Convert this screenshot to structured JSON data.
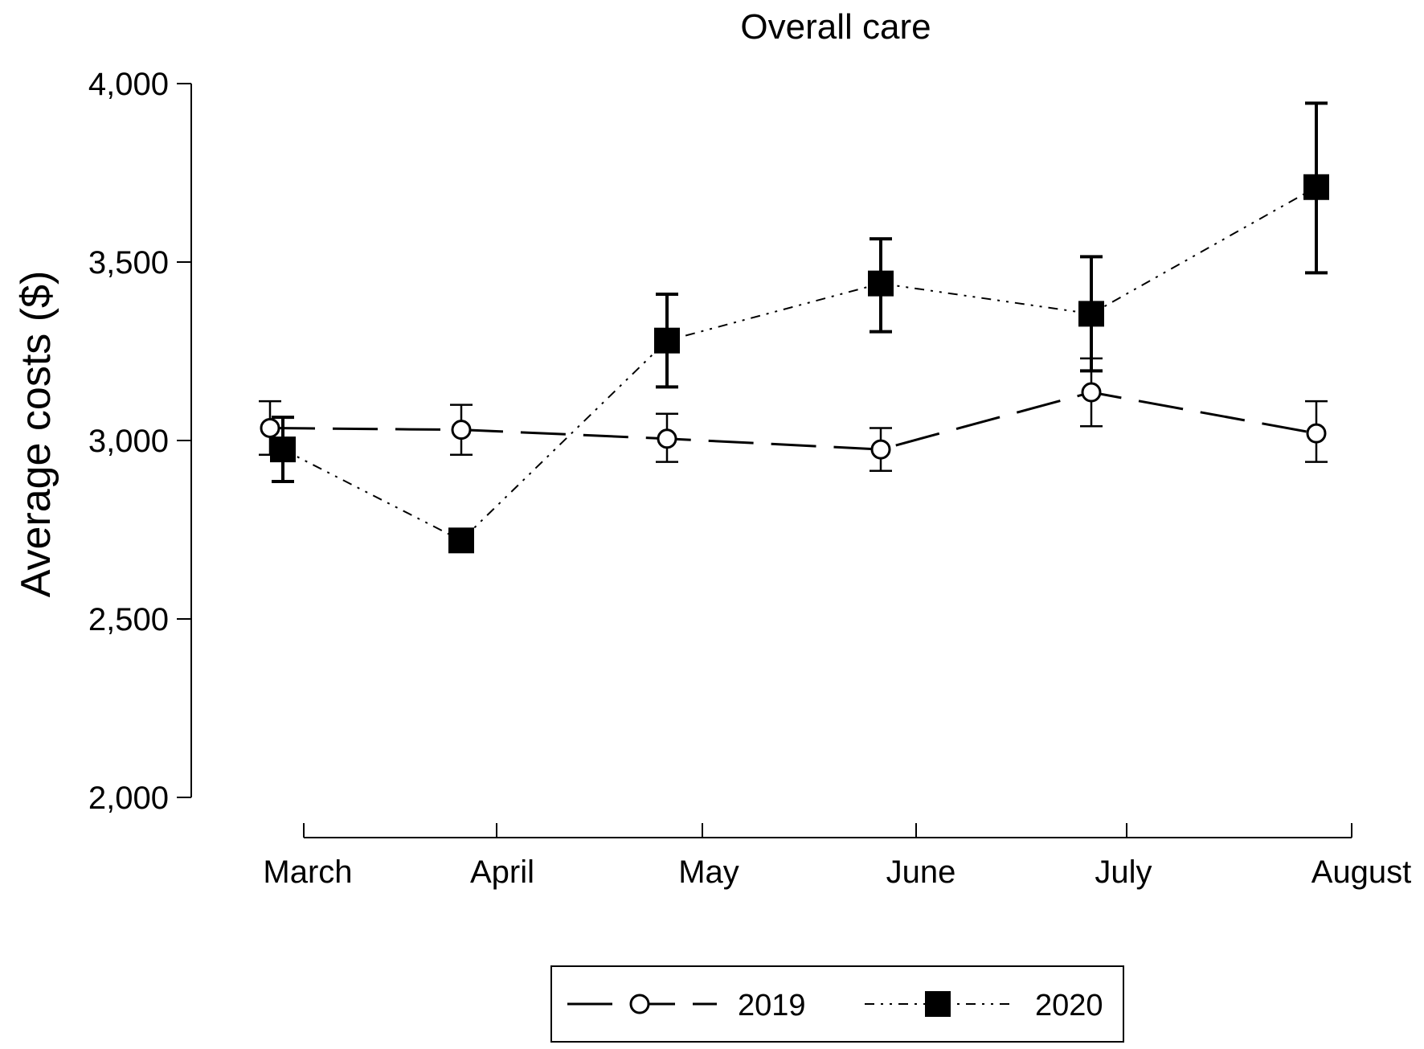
{
  "chart_data": {
    "type": "line",
    "title": "Overall care",
    "xlabel": "",
    "ylabel": "Average costs  ($)",
    "categories": [
      "March",
      "April",
      "May",
      "June",
      "July",
      "August"
    ],
    "yticks": [
      "2,000",
      "2,500",
      "3,000",
      "3,500",
      "4,000"
    ],
    "ytick_values": [
      2000,
      2500,
      3000,
      3500,
      4000
    ],
    "ylim": [
      2000,
      4000
    ],
    "grid": false,
    "legend": "bottom",
    "series": [
      {
        "name": "2019",
        "marker": "open-circle",
        "line_style": "long-dash",
        "values": [
          3035,
          3030,
          3005,
          2975,
          3135,
          3020
        ],
        "error_low": [
          2960,
          2960,
          2940,
          2915,
          3040,
          2940
        ],
        "error_high": [
          3110,
          3100,
          3075,
          3035,
          3230,
          3110
        ]
      },
      {
        "name": "2020",
        "marker": "filled-square",
        "line_style": "dash-dot-dot",
        "values": [
          2975,
          2720,
          3280,
          3440,
          3355,
          3710
        ],
        "error_low": [
          2885,
          2720,
          3150,
          3305,
          3195,
          3470
        ],
        "error_high": [
          3065,
          2720,
          3410,
          3565,
          3515,
          3945
        ]
      }
    ]
  }
}
